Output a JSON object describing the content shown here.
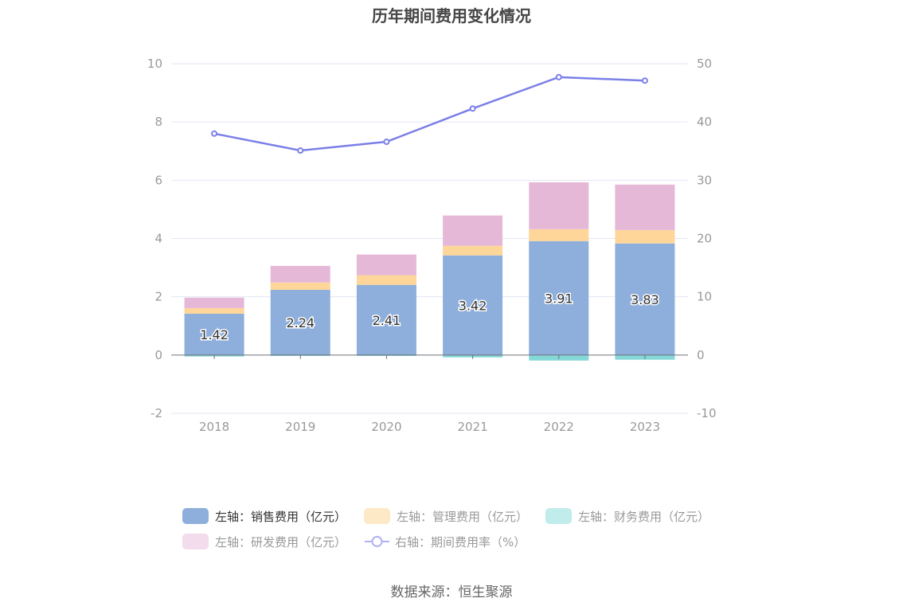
{
  "title": "历年期间费用变化情况",
  "source": "数据来源：恒生聚源",
  "colors": {
    "sales": "#8eaedb",
    "admin": "#fed699",
    "finance": "#85d8d8",
    "rd": "#e6b8d8",
    "line": "#7b7fe8",
    "grid": "#e3e6f4",
    "axis": "#999999"
  },
  "legend": [
    {
      "label": "左轴：销售费用（亿元）",
      "color": "#8eaedb",
      "type": "box",
      "active": true
    },
    {
      "label": "左轴：管理费用（亿元）",
      "color": "#fde9c6",
      "type": "box",
      "active": false
    },
    {
      "label": "左轴：财务费用（亿元）",
      "color": "#c1ecec",
      "type": "box",
      "active": false
    },
    {
      "label": "左轴：研发费用（亿元）",
      "color": "#f3dcec",
      "type": "box",
      "active": false
    },
    {
      "label": "右轴：期间费用率（%）",
      "color": "#b0b3f2",
      "type": "line",
      "active": false
    }
  ],
  "chart_data": {
    "type": "bar",
    "title": "历年期间费用变化情况",
    "categories": [
      "2018",
      "2019",
      "2020",
      "2021",
      "2022",
      "2023"
    ],
    "left_axis": {
      "ylim": [
        -2,
        10
      ],
      "ticks": [
        "-2",
        "0",
        "2",
        "4",
        "6",
        "8",
        "10"
      ]
    },
    "right_axis": {
      "ylim": [
        -10,
        50
      ],
      "ticks": [
        "-10",
        "0",
        "10",
        "20",
        "30",
        "40",
        "50"
      ]
    },
    "grid": true,
    "legend_position": "bottom",
    "series": [
      {
        "name": "左轴：销售费用（亿元）",
        "type": "bar",
        "stack": "total",
        "axis": "left",
        "values": [
          1.42,
          2.24,
          2.41,
          3.42,
          3.91,
          3.83
        ],
        "labels": [
          "1.42",
          "2.24",
          "2.41",
          "3.42",
          "3.91",
          "3.83"
        ]
      },
      {
        "name": "左轴：管理费用（亿元）",
        "type": "bar",
        "stack": "total",
        "axis": "left",
        "values": [
          0.19,
          0.25,
          0.33,
          0.33,
          0.41,
          0.46
        ]
      },
      {
        "name": "左轴：财务费用（亿元）",
        "type": "bar",
        "stack": "total",
        "axis": "left",
        "values": [
          -0.05,
          -0.03,
          -0.03,
          -0.08,
          -0.19,
          -0.16
        ]
      },
      {
        "name": "左轴：研发费用（亿元）",
        "type": "bar",
        "stack": "total",
        "axis": "left",
        "values": [
          0.36,
          0.57,
          0.71,
          1.04,
          1.61,
          1.56
        ]
      },
      {
        "name": "右轴：期间费用率（%）",
        "type": "line",
        "axis": "right",
        "values": [
          38.0,
          35.1,
          36.6,
          42.3,
          47.7,
          47.1
        ]
      }
    ]
  }
}
